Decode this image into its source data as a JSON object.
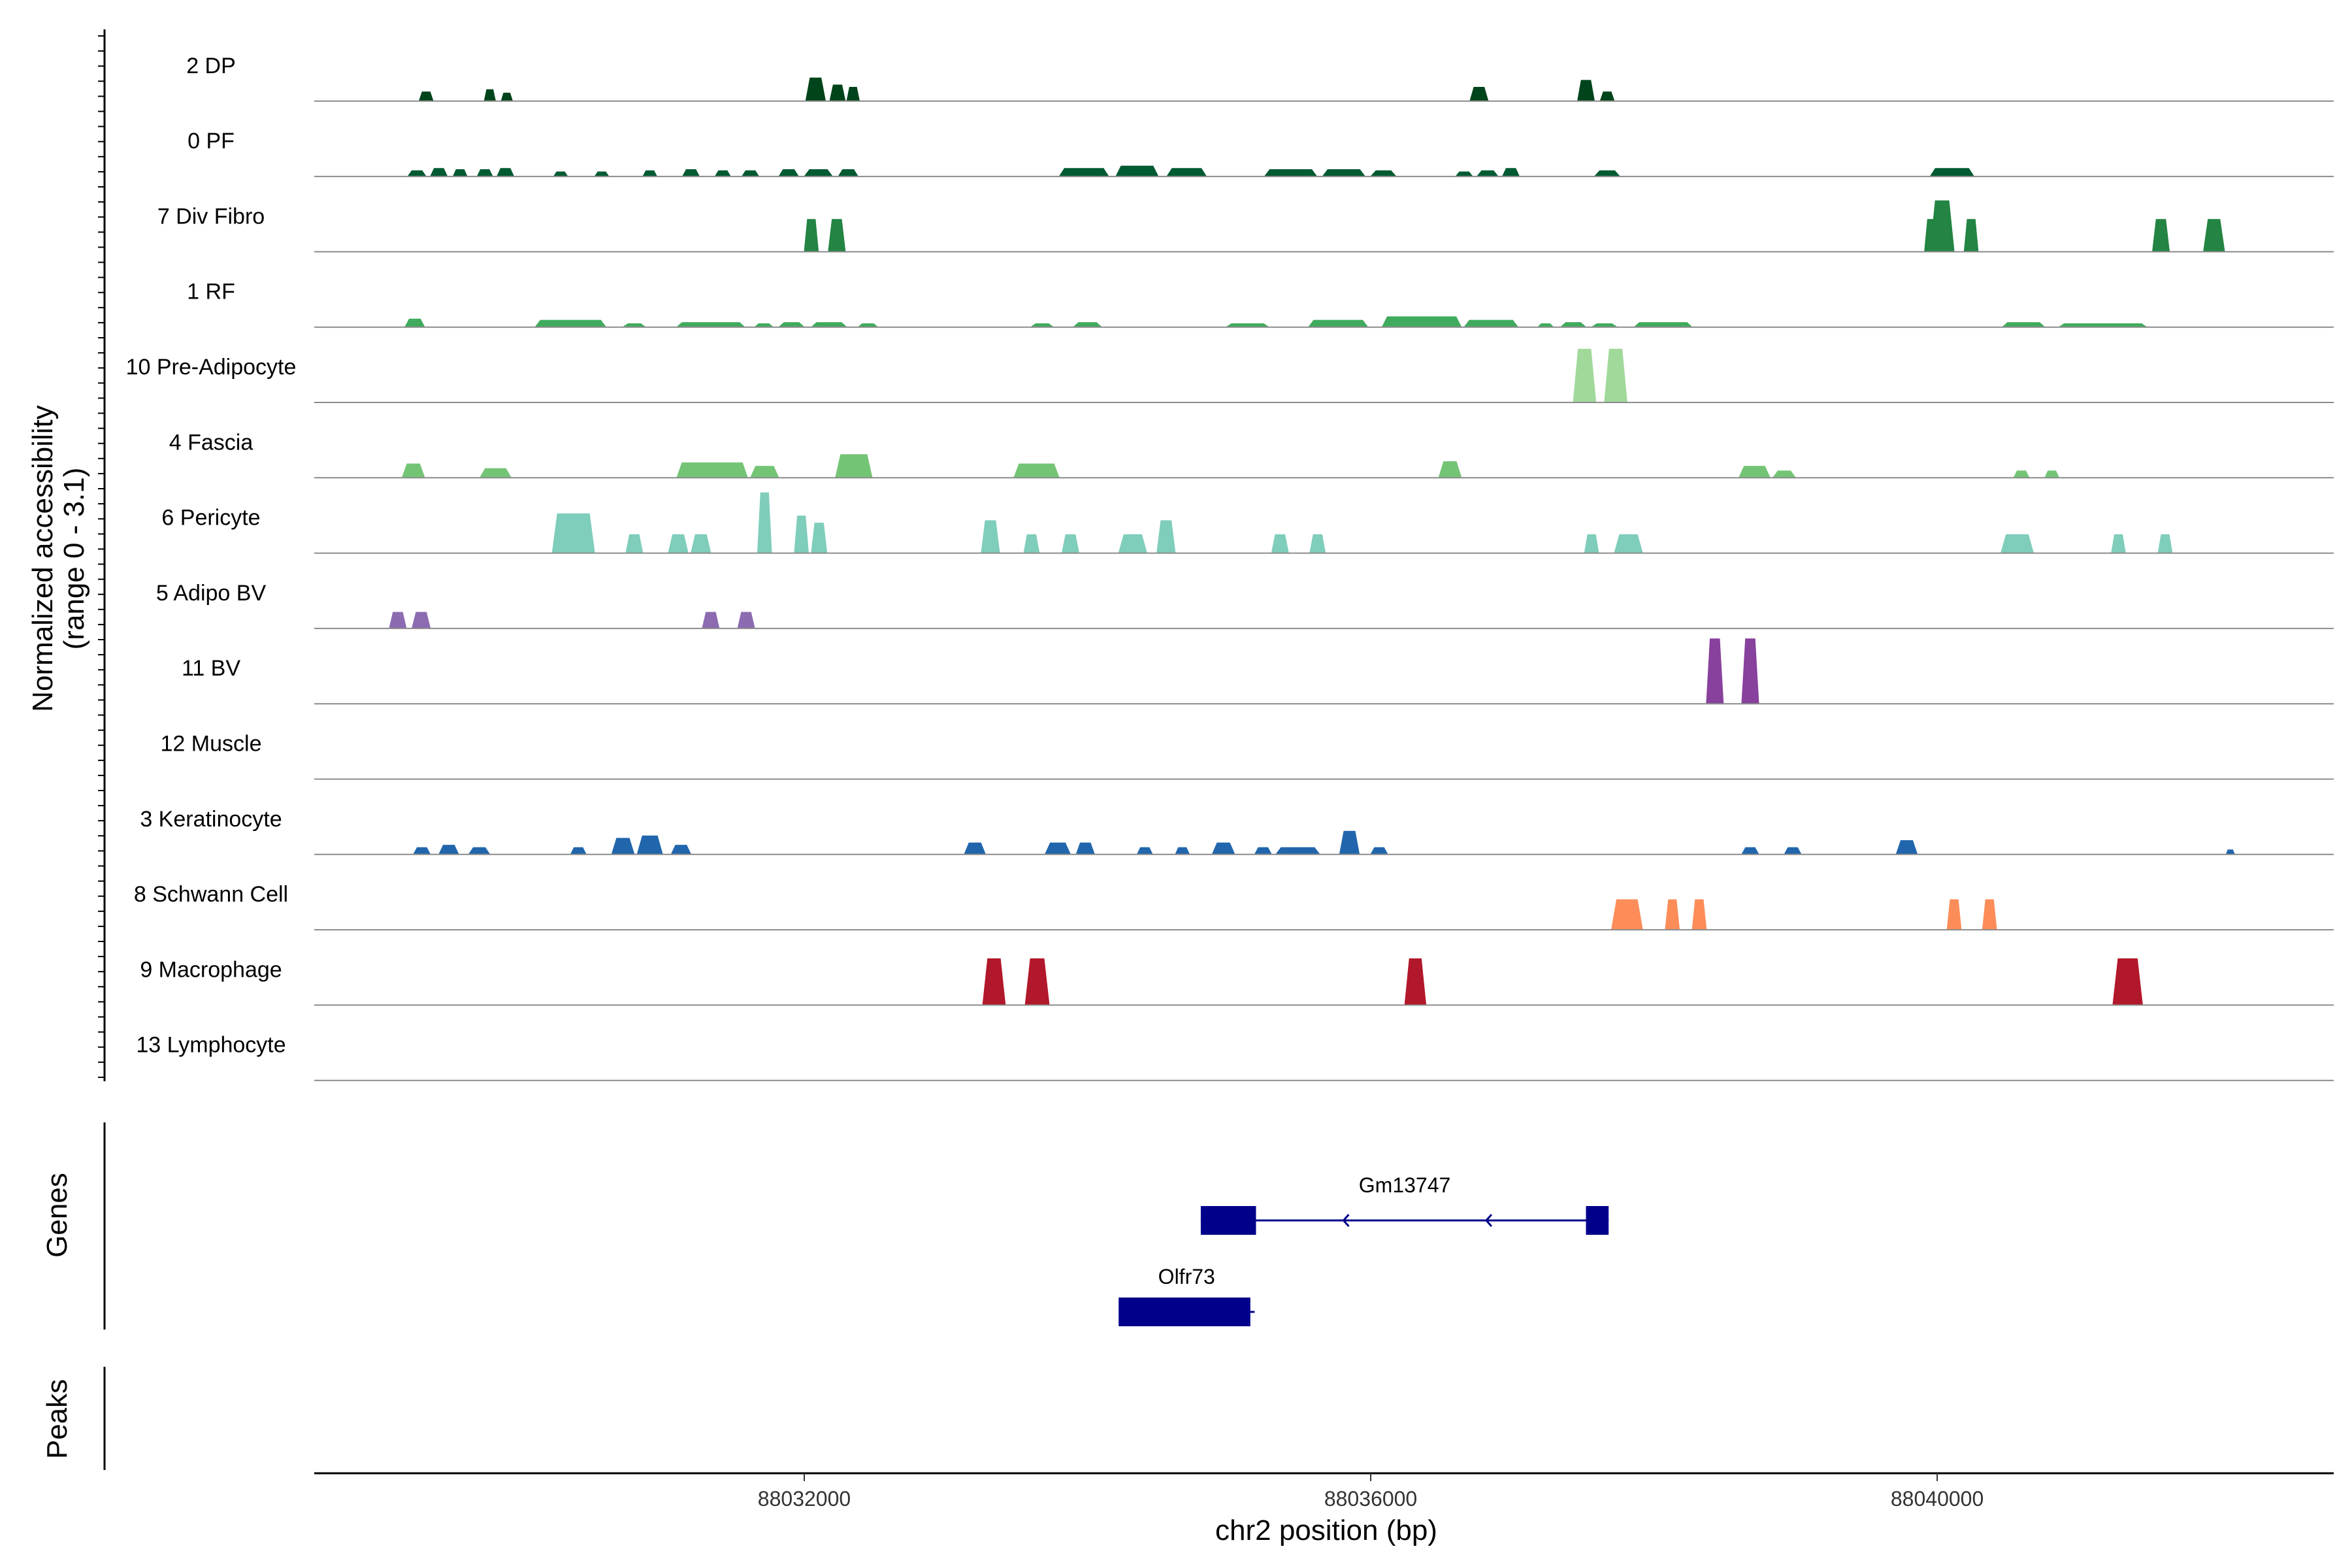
{
  "chart_data": {
    "type": "area",
    "plot_kind": "genome coverage tracks",
    "chromosome": "chr2",
    "xlabel": "chr2 position (bp)",
    "xlim": [
      88028540,
      88042800
    ],
    "xticks": [
      88032000,
      88036000,
      88040000
    ],
    "xtick_labels": [
      "88032000",
      "88036000",
      "88040000"
    ],
    "ylabel_line1": "Normalized accessibility",
    "ylabel_line2": "(range 0 - 3.1)",
    "ylim": [
      0,
      3.1
    ],
    "genes_label": "Genes",
    "peaks_label": "Peaks",
    "peaks": [],
    "tracks": [
      {
        "name": "2 DP",
        "color": "#00441b",
        "peaks": [
          [
            88029280,
            88029380,
            0.4
          ],
          [
            88029740,
            88029820,
            0.5
          ],
          [
            88029860,
            88029940,
            0.35
          ],
          [
            88032010,
            88032150,
            1.0
          ],
          [
            88032180,
            88032290,
            0.7
          ],
          [
            88032300,
            88032390,
            0.6
          ],
          [
            88036700,
            88036830,
            0.6
          ],
          [
            88037460,
            88037580,
            0.9
          ],
          [
            88037620,
            88037720,
            0.4
          ]
        ]
      },
      {
        "name": "0 PF",
        "color": "#005a32",
        "peaks": [
          [
            88029200,
            88029330,
            0.25
          ],
          [
            88029360,
            88029480,
            0.35
          ],
          [
            88029520,
            88029620,
            0.3
          ],
          [
            88029690,
            88029800,
            0.3
          ],
          [
            88029830,
            88029950,
            0.35
          ],
          [
            88030230,
            88030330,
            0.2
          ],
          [
            88030520,
            88030620,
            0.2
          ],
          [
            88030860,
            88030960,
            0.25
          ],
          [
            88031140,
            88031260,
            0.3
          ],
          [
            88031370,
            88031480,
            0.25
          ],
          [
            88031560,
            88031680,
            0.25
          ],
          [
            88031820,
            88031960,
            0.3
          ],
          [
            88032000,
            88032200,
            0.3
          ],
          [
            88032240,
            88032380,
            0.3
          ],
          [
            88033800,
            88034150,
            0.35
          ],
          [
            88034200,
            88034500,
            0.45
          ],
          [
            88034560,
            88034840,
            0.35
          ],
          [
            88035250,
            88035620,
            0.3
          ],
          [
            88035660,
            88035960,
            0.3
          ],
          [
            88036000,
            88036180,
            0.25
          ],
          [
            88036600,
            88036720,
            0.2
          ],
          [
            88036750,
            88036900,
            0.25
          ],
          [
            88036930,
            88037050,
            0.35
          ],
          [
            88037580,
            88037760,
            0.25
          ],
          [
            88039950,
            88040260,
            0.35
          ]
        ]
      },
      {
        "name": "7 Div Fibro",
        "color": "#238443",
        "peaks": [
          [
            88032000,
            88032100,
            1.4
          ],
          [
            88032170,
            88032290,
            1.4
          ],
          [
            88039910,
            88040010,
            1.4
          ],
          [
            88040190,
            88040290,
            1.4
          ],
          [
            88039950,
            88040120,
            2.2
          ],
          [
            88041520,
            88041640,
            1.4
          ],
          [
            88041880,
            88042030,
            1.4
          ]
        ]
      },
      {
        "name": "1 RF",
        "color": "#41ab5d",
        "peaks": [
          [
            88029180,
            88029320,
            0.35
          ],
          [
            88030100,
            88030600,
            0.3
          ],
          [
            88030720,
            88030880,
            0.15
          ],
          [
            88031100,
            88031580,
            0.2
          ],
          [
            88031650,
            88031780,
            0.15
          ],
          [
            88031820,
            88032000,
            0.2
          ],
          [
            88032050,
            88032300,
            0.2
          ],
          [
            88032380,
            88032520,
            0.15
          ],
          [
            88033600,
            88033760,
            0.15
          ],
          [
            88033900,
            88034100,
            0.2
          ],
          [
            88034980,
            88035280,
            0.15
          ],
          [
            88035560,
            88035980,
            0.3
          ],
          [
            88036080,
            88036640,
            0.45
          ],
          [
            88036660,
            88037040,
            0.3
          ],
          [
            88037180,
            88037290,
            0.15
          ],
          [
            88037340,
            88037520,
            0.2
          ],
          [
            88037560,
            88037740,
            0.15
          ],
          [
            88037860,
            88038270,
            0.2
          ],
          [
            88040460,
            88040760,
            0.2
          ],
          [
            88040860,
            88041480,
            0.15
          ]
        ]
      },
      {
        "name": "10 Pre-Adipocyte",
        "color": "#a1d99b",
        "peaks": [
          [
            88037430,
            88037590,
            2.3
          ],
          [
            88037650,
            88037810,
            2.3
          ]
        ]
      },
      {
        "name": "4 Fascia",
        "color": "#74c476",
        "peaks": [
          [
            88029160,
            88029320,
            0.6
          ],
          [
            88029710,
            88029930,
            0.4
          ],
          [
            88031100,
            88031600,
            0.65
          ],
          [
            88031620,
            88031820,
            0.5
          ],
          [
            88032220,
            88032480,
            1.0
          ],
          [
            88033480,
            88033800,
            0.6
          ],
          [
            88036480,
            88036640,
            0.7
          ],
          [
            88038600,
            88038820,
            0.5
          ],
          [
            88038840,
            88039000,
            0.3
          ],
          [
            88040540,
            88040650,
            0.3
          ],
          [
            88040760,
            88040860,
            0.3
          ]
        ]
      },
      {
        "name": "6 Pericyte",
        "color": "#7fcdbb",
        "peaks": [
          [
            88030220,
            88030520,
            1.7
          ],
          [
            88030740,
            88030860,
            0.8
          ],
          [
            88031040,
            88031180,
            0.8
          ],
          [
            88031200,
            88031340,
            0.8
          ],
          [
            88031670,
            88031770,
            2.6
          ],
          [
            88031930,
            88032030,
            1.6
          ],
          [
            88032050,
            88032160,
            1.3
          ],
          [
            88033250,
            88033380,
            1.4
          ],
          [
            88033550,
            88033660,
            0.8
          ],
          [
            88033820,
            88033940,
            0.8
          ],
          [
            88034220,
            88034420,
            0.8
          ],
          [
            88034490,
            88034620,
            1.4
          ],
          [
            88035300,
            88035420,
            0.8
          ],
          [
            88035570,
            88035680,
            0.8
          ],
          [
            88037510,
            88037610,
            0.8
          ],
          [
            88037720,
            88037920,
            0.8
          ],
          [
            88040450,
            88040680,
            0.8
          ],
          [
            88041230,
            88041330,
            0.8
          ],
          [
            88041560,
            88041660,
            0.8
          ]
        ]
      },
      {
        "name": "5 Adipo BV",
        "color": "#8c6bb1",
        "peaks": [
          [
            88029070,
            88029190,
            0.7
          ],
          [
            88029230,
            88029360,
            0.7
          ],
          [
            88031280,
            88031400,
            0.7
          ],
          [
            88031530,
            88031650,
            0.7
          ]
        ]
      },
      {
        "name": "11 BV",
        "color": "#88419d",
        "peaks": [
          [
            88038370,
            88038490,
            2.8
          ],
          [
            88038620,
            88038740,
            2.8
          ]
        ]
      },
      {
        "name": "12 Muscle",
        "color": "#6e016b",
        "peaks": []
      },
      {
        "name": "3 Keratinocyte",
        "color": "#2166ac",
        "peaks": [
          [
            88029240,
            88029360,
            0.3
          ],
          [
            88029420,
            88029560,
            0.4
          ],
          [
            88029630,
            88029780,
            0.3
          ],
          [
            88030350,
            88030460,
            0.3
          ],
          [
            88030640,
            88030800,
            0.7
          ],
          [
            88030820,
            88031000,
            0.8
          ],
          [
            88031060,
            88031200,
            0.4
          ],
          [
            88033130,
            88033280,
            0.5
          ],
          [
            88033700,
            88033880,
            0.5
          ],
          [
            88033920,
            88034050,
            0.5
          ],
          [
            88034350,
            88034460,
            0.3
          ],
          [
            88034620,
            88034720,
            0.3
          ],
          [
            88034880,
            88035040,
            0.5
          ],
          [
            88035180,
            88035300,
            0.3
          ],
          [
            88035330,
            88035640,
            0.3
          ],
          [
            88035780,
            88035920,
            1.0
          ],
          [
            88036000,
            88036120,
            0.3
          ],
          [
            88038620,
            88038740,
            0.3
          ],
          [
            88038920,
            88039040,
            0.3
          ],
          [
            88039710,
            88039860,
            0.6
          ],
          [
            88042040,
            88042100,
            0.2
          ]
        ]
      },
      {
        "name": "8 Schwann Cell",
        "color": "#fc8d59",
        "peaks": [
          [
            88037700,
            88037920,
            1.3
          ],
          [
            88038080,
            88038180,
            1.3
          ],
          [
            88038270,
            88038370,
            1.3
          ],
          [
            88040070,
            88040170,
            1.3
          ],
          [
            88040320,
            88040420,
            1.3
          ]
        ]
      },
      {
        "name": "9 Macrophage",
        "color": "#b2182b",
        "peaks": [
          [
            88033260,
            88033420,
            2.0
          ],
          [
            88033560,
            88033730,
            2.0
          ],
          [
            88036240,
            88036390,
            2.0
          ],
          [
            88041240,
            88041450,
            2.0
          ]
        ]
      },
      {
        "name": "13 Lymphocyte",
        "color": "#67001f",
        "peaks": []
      }
    ],
    "genes": [
      {
        "name": "Gm13747",
        "start": 88034800,
        "end": 88037680,
        "strand": "-",
        "color": "#00008b",
        "exons": [
          [
            88034800,
            88035190
          ],
          [
            88037520,
            88037680
          ]
        ]
      },
      {
        "name": "Olfr73",
        "start": 88034220,
        "end": 88035180,
        "strand": "-",
        "color": "#00008b",
        "exons": [
          [
            88034220,
            88035150
          ]
        ]
      }
    ]
  }
}
